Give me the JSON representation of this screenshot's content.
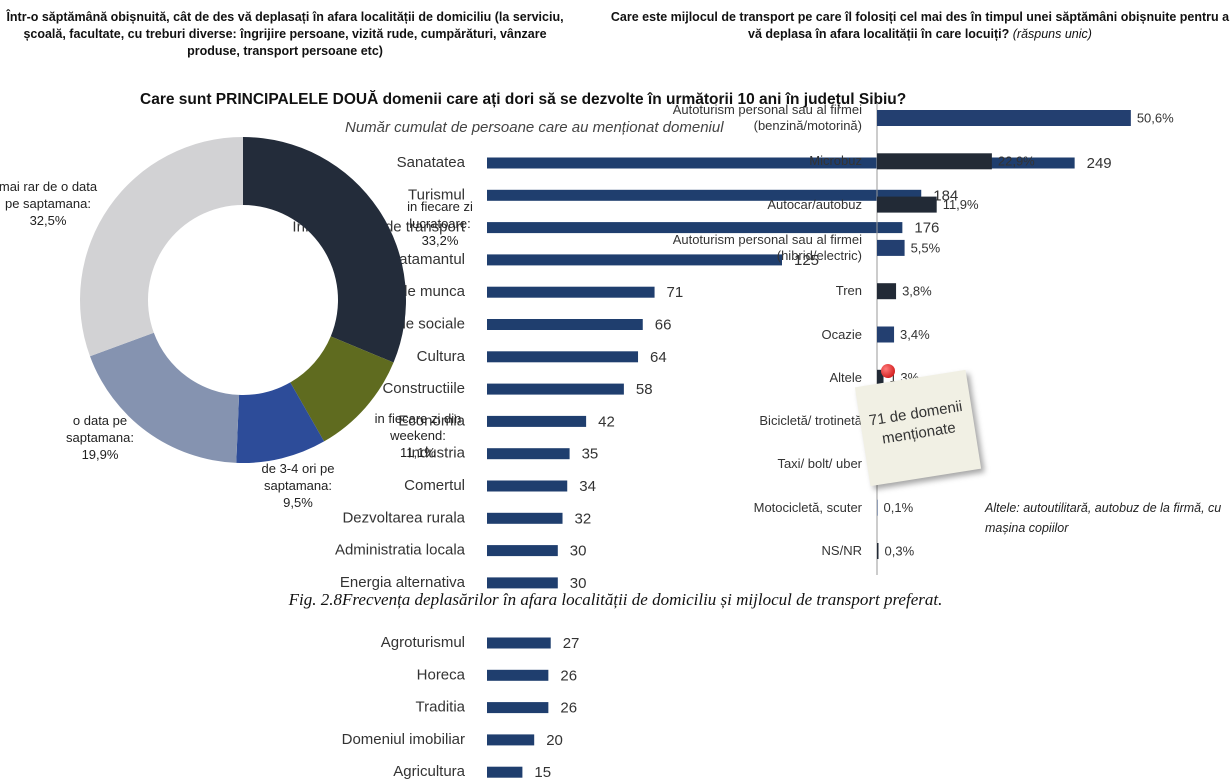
{
  "chart_data": [
    {
      "type": "donut",
      "title": "Într-o săptămână obișnuită, cât de des vă deplasați în afara localității de domiciliu (la serviciu, școală, facultate, cu treburi diverse: îngrijire persoane, vizită rude, cumpărături, vânzare produse, transport persoane etc)",
      "categories": [
        "in fiecare zi lucratoare:",
        "in fiecare zi din weekend:",
        "de 3-4 ori pe saptamana:",
        "o data pe saptamana:",
        "mai rar de o data pe saptamana:"
      ],
      "values": [
        33.2,
        11.1,
        9.5,
        19.9,
        32.5
      ],
      "value_labels": [
        "33,2%",
        "11,1%",
        "9,5%",
        "19,9%",
        "32,5%"
      ],
      "colors": [
        "#232c3a",
        "#5f6b1f",
        "#2d4c99",
        "#8593b0",
        "#d2d2d4"
      ]
    },
    {
      "type": "hbar",
      "title": "Care sunt PRINCIPALELE DOUĂ domenii care ați dori să se dezvolte în următorii 10 ani în județul Sibiu?",
      "subtitle": "Număr cumulat de persoane care au menționat domeniul",
      "categories": [
        "Sanatatea",
        "Turismul",
        "Infrastructura de transport",
        "Invatamantul",
        "Locuri de munca",
        "Serviciile sociale",
        "Cultura",
        "Constructiile",
        "Economia",
        "Industria",
        "Comertul",
        "Dezvoltarea rurala",
        "Administratia locala",
        "Energia alternativa",
        "Agroturismul",
        "Horeca",
        "Traditia",
        "Domeniul imobiliar",
        "Agricultura"
      ],
      "values": [
        249,
        184,
        176,
        125,
        71,
        66,
        64,
        58,
        42,
        35,
        34,
        32,
        30,
        30,
        27,
        26,
        26,
        20,
        15
      ],
      "color": "#1f3e6e",
      "xlim": [
        0,
        250
      ]
    },
    {
      "type": "hbar-axis",
      "title": "Care este mijlocul de transport pe care îl folosiți cel mai des în timpul unei săptămâni obișnuite pentru a vă deplasa în afara localității în care locuiți?",
      "title_note": "(răspuns unic)",
      "categories": [
        "Autoturism personal sau al firmei (benzină/motorină)",
        "Microbuz",
        "Autocar/autobuz",
        "Autoturism personal sau al firmei (hibrid/electric)",
        "Tren",
        "Ocazie",
        "Altele",
        "Bicicletă/ trotinetă",
        "Taxi/ bolt/ uber",
        "Motocicletă, scuter",
        "NS/NR"
      ],
      "values": [
        50.6,
        22.9,
        11.9,
        5.5,
        3.8,
        3.4,
        1.3,
        0.5,
        0.4,
        0.1,
        0.3
      ],
      "value_labels": [
        "50,6%",
        "22,9%",
        "11,9%",
        "5,5%",
        "3,8%",
        "3,4%",
        "1,3%",
        "0,5%",
        "0,4%",
        "0,1%",
        "0,3%"
      ],
      "colors": [
        "#233f70",
        "#222a36",
        "#222a36",
        "#233f70",
        "#222a36",
        "#233f70",
        "#222a36",
        "#233f70",
        "#222a36",
        "#233f70",
        "#222a36"
      ],
      "xlim": [
        0,
        60
      ],
      "annotation": "Altele: autoutilitară, autobuz de la firmă, cu mașina copiilor"
    }
  ],
  "sticky_note": "71 de domenii menționate",
  "caption": "Fig. 2.8Frecvența deplasărilor în afara localității de domiciliu și mijlocul de transport preferat."
}
